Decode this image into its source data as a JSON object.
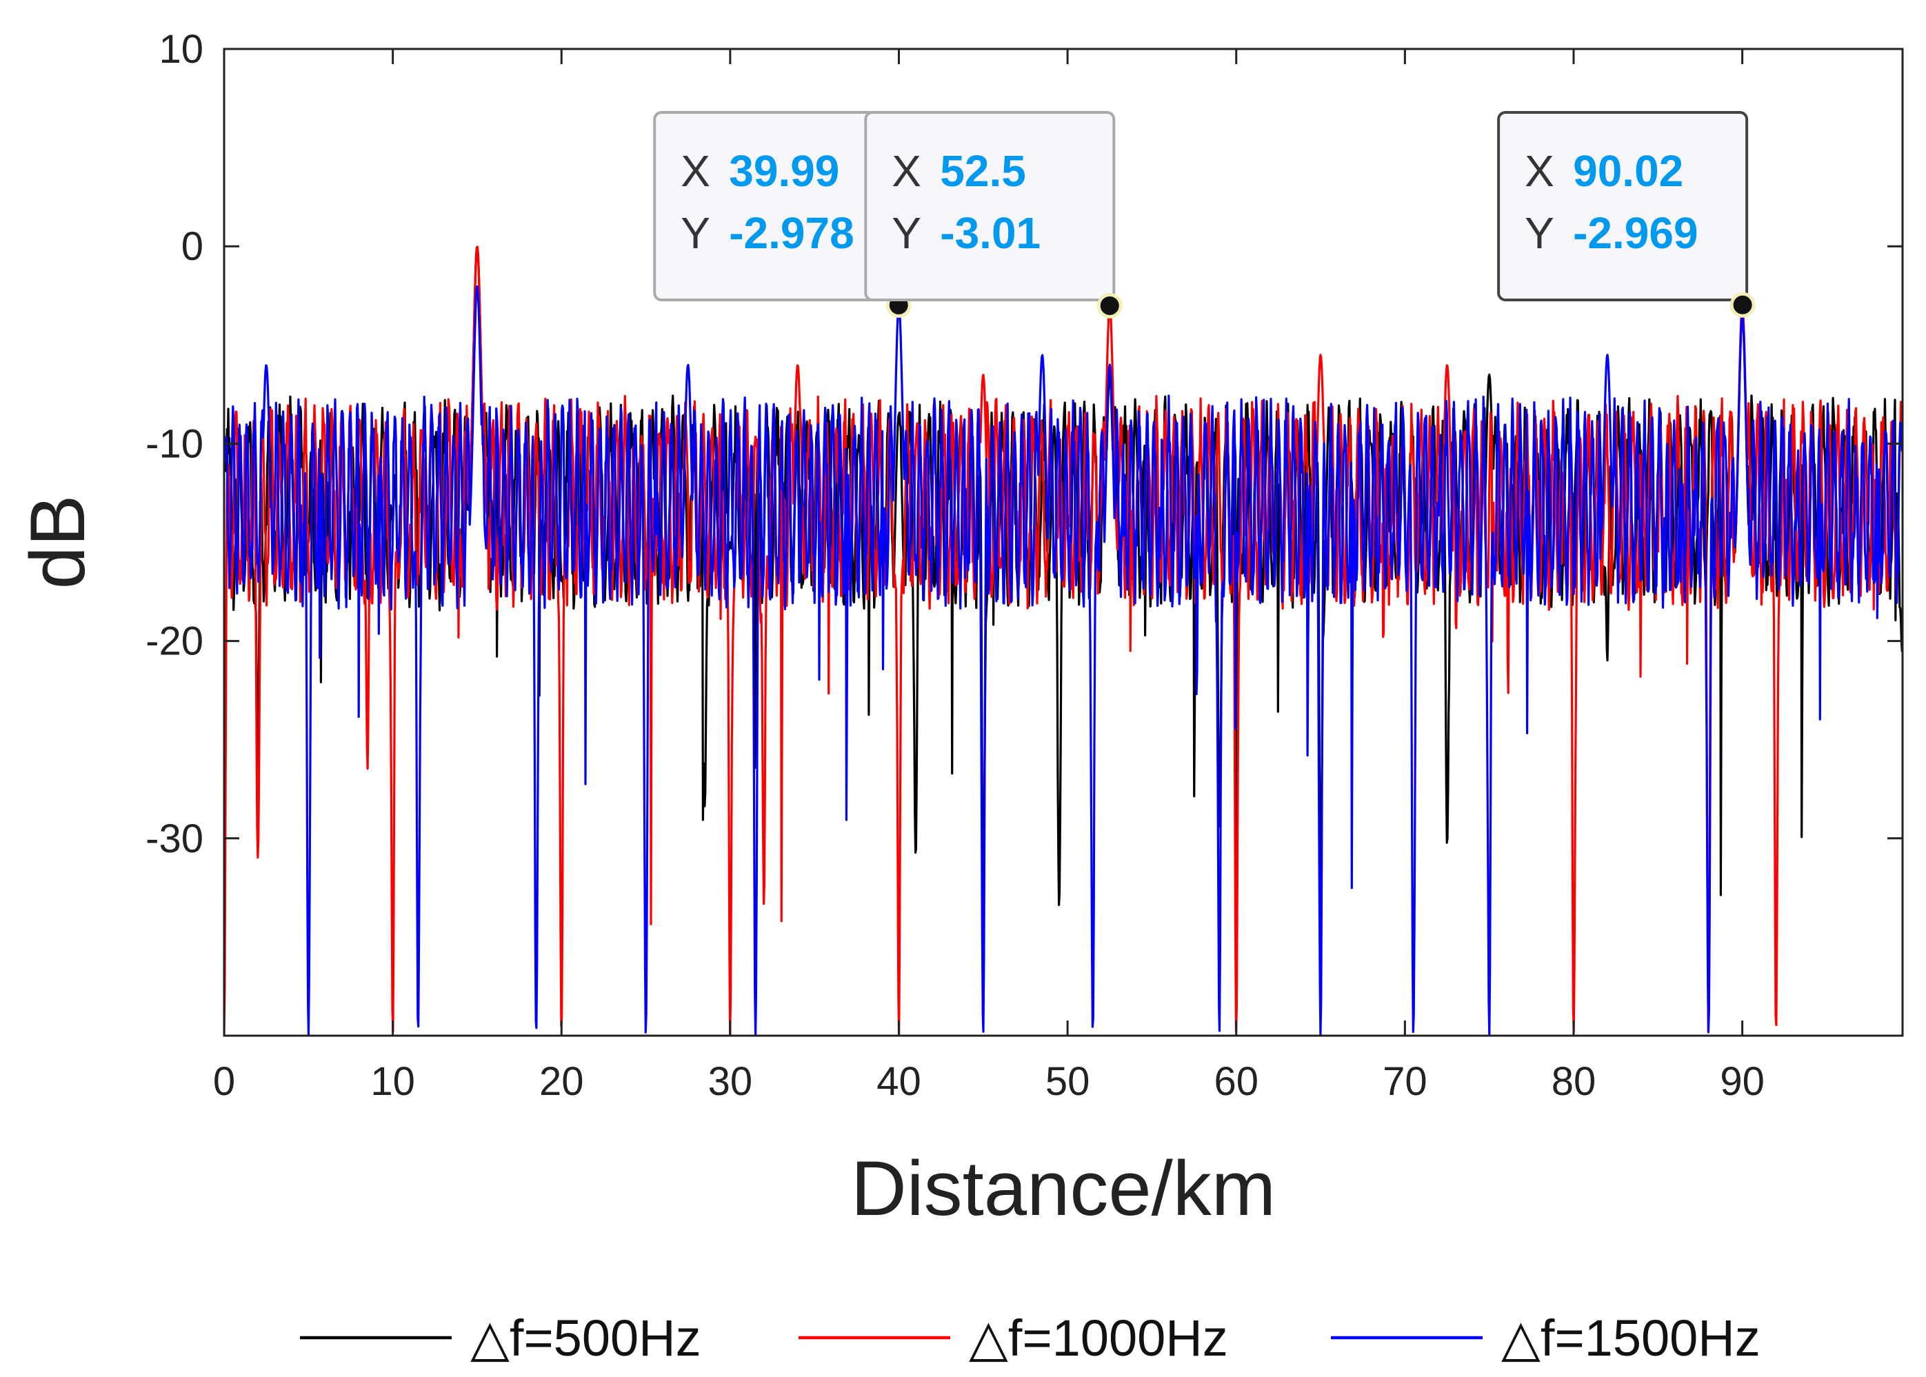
{
  "chart_data": {
    "type": "line",
    "xlabel": "Distance/km",
    "ylabel": "dB",
    "xlim": [
      0,
      99.5
    ],
    "ylim": [
      -40,
      10
    ],
    "xticks": [
      0,
      10,
      20,
      30,
      40,
      50,
      60,
      70,
      80,
      90
    ],
    "yticks": [
      10,
      0,
      -10,
      -20,
      -30
    ],
    "grid": false,
    "legend": "bottom",
    "series": [
      {
        "name": "△f=500Hz",
        "color": "#000000",
        "peaks": [
          [
            15,
            0
          ],
          [
            40,
            -8.5
          ],
          [
            52.5,
            -6.5
          ],
          [
            75,
            -6.5
          ],
          [
            90,
            -3.5
          ]
        ],
        "noise_floor_db": -13,
        "x_sample": [
          0,
          2,
          5,
          10,
          15,
          20,
          28.5,
          30,
          40,
          41,
          45,
          49.5,
          52.5,
          59,
          65,
          68,
          72.5,
          75,
          82,
          90,
          99.5
        ],
        "y_sample": [
          -9.5,
          -26.5,
          -15,
          -14,
          0,
          -17,
          -28.5,
          -15,
          -8.5,
          -31,
          -34,
          -33.5,
          -6.5,
          -29.5,
          -33.5,
          -10,
          -30.5,
          -6.5,
          -21,
          -3.5,
          -21
        ]
      },
      {
        "name": "△f=1000Hz",
        "color": "#ff0000",
        "peaks": [
          [
            15,
            0
          ],
          [
            34,
            -6
          ],
          [
            45,
            -6.5
          ],
          [
            52.5,
            -3.01
          ],
          [
            65,
            -5.5
          ],
          [
            72.5,
            -6
          ],
          [
            90,
            -3
          ]
        ],
        "noise_floor_db": -13,
        "x_sample": [
          0,
          2,
          8.5,
          10,
          15,
          20,
          30,
          32,
          34,
          40,
          45,
          52.5,
          60,
          65,
          72.5,
          80,
          88,
          90,
          92,
          99.5
        ],
        "y_sample": [
          -40,
          -31,
          -26.5,
          -40,
          0,
          -40,
          -40,
          -33.5,
          -6,
          -40,
          -6.5,
          -3.01,
          -40,
          -5.5,
          -6,
          -40,
          -40,
          -3,
          -40,
          -8
        ]
      },
      {
        "name": "△f=1500Hz",
        "color": "#0000ff",
        "peaks": [
          [
            2.5,
            -6
          ],
          [
            15,
            -2
          ],
          [
            27.5,
            -6
          ],
          [
            40,
            -2.978
          ],
          [
            48.5,
            -5.5
          ],
          [
            52.5,
            -6
          ],
          [
            82,
            -5.5
          ],
          [
            90,
            -3.5
          ]
        ],
        "noise_floor_db": -13,
        "x_sample": [
          0,
          2.5,
          5,
          11.5,
          15,
          18.5,
          25,
          27.5,
          31.5,
          40,
          45,
          48.5,
          51.5,
          59,
          65,
          70.5,
          75,
          82,
          88,
          90,
          99.5
        ],
        "y_sample": [
          -11,
          -6,
          -40,
          -40,
          -2,
          -40,
          -40,
          -6,
          -40,
          -2.978,
          -40,
          -5.5,
          -40,
          -40,
          -40,
          -40,
          -40,
          -5.5,
          -40,
          -3.5,
          -10
        ]
      }
    ],
    "datatips": [
      {
        "x_label": "X",
        "x_value": "39.99",
        "y_label": "Y",
        "y_value": "-2.978",
        "x": 39.99,
        "y": -2.978
      },
      {
        "x_label": "X",
        "x_value": "52.5",
        "y_label": "Y",
        "y_value": "-3.01",
        "x": 52.5,
        "y": -3.01
      },
      {
        "x_label": "X",
        "x_value": "90.02",
        "y_label": "Y",
        "y_value": "-2.969",
        "x": 90.02,
        "y": -2.969
      }
    ],
    "datatip_value_color": "#0099ee"
  }
}
